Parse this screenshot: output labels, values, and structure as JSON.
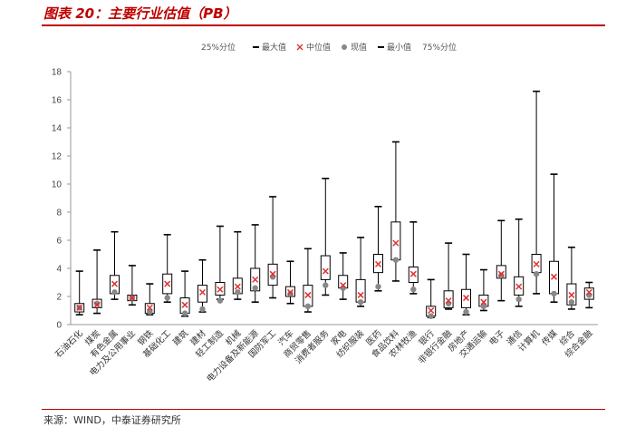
{
  "figure": {
    "title": "图表 20：主要行业估值（PB）",
    "source": "来源：WIND，中泰证券研究所"
  },
  "colors": {
    "title": "#c00000",
    "box": "#000000",
    "median_marker": "#e03030",
    "current_marker": "#888888"
  },
  "chart_data": {
    "type": "box",
    "legend": [
      {
        "key": "q1",
        "label": "25%分位"
      },
      {
        "key": "max",
        "label": "最大值"
      },
      {
        "key": "median",
        "label": "中位值"
      },
      {
        "key": "current",
        "label": "现值"
      },
      {
        "key": "min",
        "label": "最小值"
      },
      {
        "key": "q3",
        "label": "75%分位"
      }
    ],
    "ylim": [
      0,
      18
    ],
    "yticks": [
      0,
      2,
      4,
      6,
      8,
      10,
      12,
      14,
      16,
      18
    ],
    "categories": [
      "石油石化",
      "煤炭",
      "有色金属",
      "电力及公用事业",
      "钢铁",
      "基础化工",
      "建筑",
      "建材",
      "轻工制造",
      "机械",
      "电力设备及新能源",
      "国防军工",
      "汽车",
      "商贸零售",
      "消费者服务",
      "家电",
      "纺织服装",
      "医药",
      "食品饮料",
      "农林牧渔",
      "银行",
      "非银行金融",
      "房地产",
      "交通运输",
      "电子",
      "通信",
      "计算机",
      "传媒",
      "综合",
      "综合金融"
    ],
    "max": [
      3.8,
      5.3,
      6.6,
      4.2,
      2.9,
      6.4,
      3.8,
      4.6,
      7.0,
      6.6,
      7.1,
      9.1,
      4.5,
      5.4,
      10.4,
      5.1,
      6.2,
      8.4,
      13.0,
      7.3,
      3.2,
      5.8,
      5.0,
      3.9,
      7.4,
      7.5,
      16.6,
      10.7,
      5.5,
      3.0
    ],
    "q3": [
      1.5,
      1.8,
      3.5,
      2.1,
      1.5,
      3.6,
      1.9,
      2.8,
      3.0,
      3.3,
      4.0,
      4.3,
      2.7,
      2.8,
      4.9,
      3.5,
      3.2,
      5.0,
      7.3,
      4.1,
      1.3,
      2.4,
      2.5,
      2.1,
      4.2,
      3.4,
      5.0,
      4.5,
      2.9,
      2.6
    ],
    "median": [
      1.2,
      1.4,
      2.9,
      1.9,
      1.2,
      2.9,
      1.4,
      2.3,
      2.5,
      2.7,
      3.2,
      3.6,
      2.3,
      2.1,
      3.8,
      2.8,
      2.1,
      4.3,
      5.8,
      3.6,
      1.0,
      1.7,
      1.9,
      1.6,
      3.6,
      2.7,
      4.3,
      3.4,
      2.1,
      2.3
    ],
    "q1": [
      0.9,
      1.2,
      2.2,
      1.7,
      0.8,
      2.2,
      0.8,
      1.6,
      2.1,
      2.2,
      2.4,
      2.8,
      2.0,
      1.3,
      3.2,
      2.6,
      1.6,
      3.7,
      4.6,
      3.0,
      0.6,
      1.2,
      1.2,
      1.3,
      3.3,
      2.1,
      3.7,
      2.2,
      1.4,
      1.8
    ],
    "min": [
      0.7,
      0.8,
      1.8,
      1.4,
      0.7,
      1.6,
      0.6,
      0.9,
      1.8,
      1.8,
      1.6,
      1.9,
      1.5,
      0.9,
      2.1,
      1.8,
      1.3,
      2.4,
      3.1,
      2.2,
      0.5,
      1.1,
      0.7,
      1.0,
      1.7,
      1.3,
      2.2,
      1.6,
      1.1,
      1.2
    ],
    "current": [
      1.2,
      1.5,
      2.3,
      1.9,
      0.9,
      1.9,
      0.8,
      1.1,
      1.7,
      2.3,
      2.6,
      3.4,
      2.2,
      1.3,
      2.8,
      2.6,
      1.6,
      2.7,
      4.6,
      2.5,
      0.6,
      1.5,
      0.9,
      1.3,
      3.5,
      1.8,
      3.6,
      2.2,
      1.6,
      2.1
    ]
  }
}
